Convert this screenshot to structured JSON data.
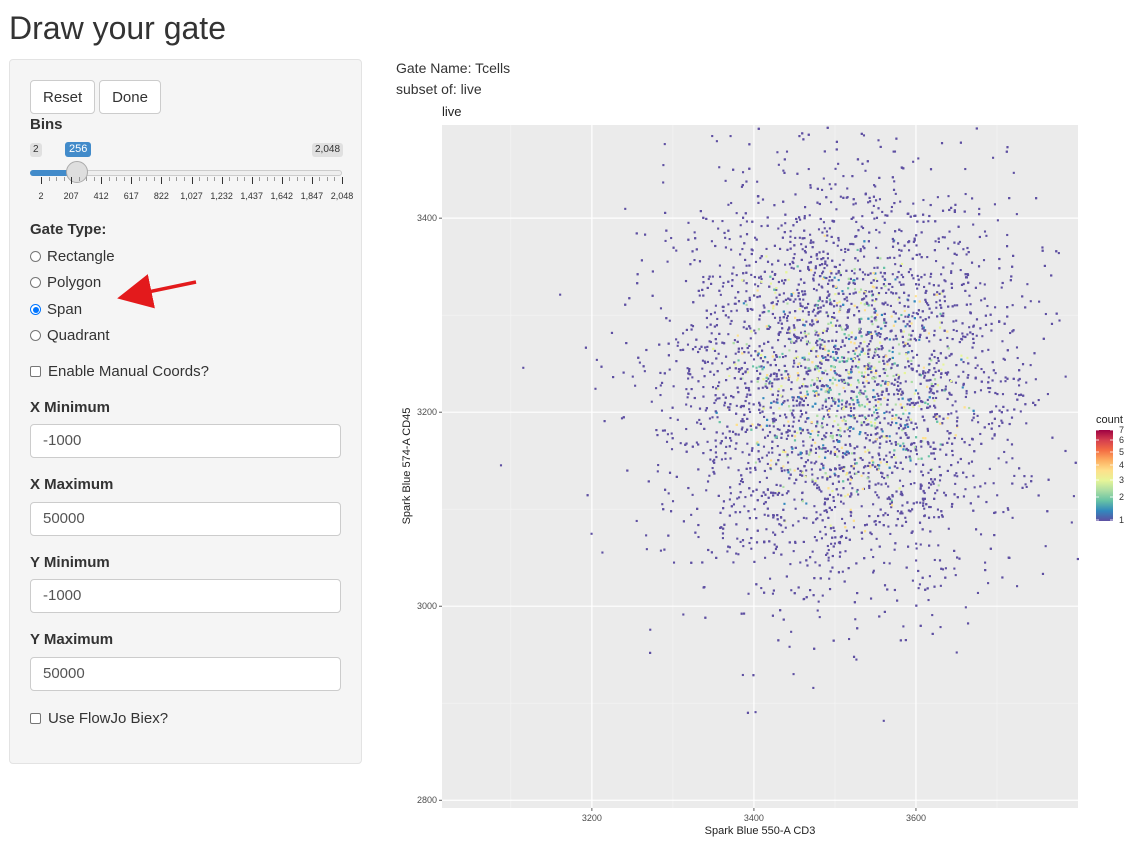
{
  "page": {
    "title": "Draw your gate"
  },
  "controls": {
    "reset_label": "Reset",
    "done_label": "Done",
    "bins": {
      "label": "Bins",
      "min": "2",
      "max": "2,048",
      "value": "256",
      "value_fraction": 0.124,
      "ticks": [
        "2",
        "207",
        "412",
        "617",
        "822",
        "1,027",
        "1,232",
        "1,437",
        "1,642",
        "1,847",
        "2,048"
      ]
    },
    "gate_type": {
      "label": "Gate Type:",
      "options": [
        "Rectangle",
        "Polygon",
        "Span",
        "Quadrant"
      ],
      "selected": "Span"
    },
    "manual_coords": {
      "label": "Enable Manual Coords?",
      "checked": false
    },
    "x_min": {
      "label": "X Minimum",
      "value": "-1000"
    },
    "x_max": {
      "label": "X Maximum",
      "value": "50000"
    },
    "y_min": {
      "label": "Y Minimum",
      "value": "-1000"
    },
    "y_max": {
      "label": "Y Maximum",
      "value": "50000"
    },
    "flowjo": {
      "label": "Use FlowJo Biex?",
      "checked": false
    }
  },
  "gate_info": {
    "name_line": "Gate Name: Tcells",
    "subset_line": "subset of: live"
  },
  "chart_data": {
    "type": "scatter",
    "title": "live",
    "xlabel": "Spark Blue 550-A CD3",
    "ylabel": "Spark Blue 574-A CD45",
    "xlim": [
      3015,
      3800
    ],
    "ylim": [
      2792,
      3496
    ],
    "x_ticks": [
      3200,
      3400,
      3600
    ],
    "y_ticks": [
      2800,
      3000,
      3200,
      3400
    ],
    "grid": true,
    "background": "#ebebeb",
    "point_color_low": "#5e4fa2",
    "density_center": {
      "x": 3510,
      "y": 3230
    },
    "density_sd": {
      "x": 105,
      "y": 100
    },
    "legend": {
      "title": "count",
      "position": "right",
      "labels": [
        "7",
        "6",
        "5",
        "4",
        "3",
        "2",
        "1"
      ],
      "colors": [
        "#9e0142",
        "#d53e4f",
        "#f46d43",
        "#fdae61",
        "#fee08b",
        "#e6f598",
        "#abdda4",
        "#66c2a5",
        "#3288bd",
        "#5e4fa2"
      ]
    }
  },
  "annotation": {
    "arrow_color": "#e31a1c"
  }
}
